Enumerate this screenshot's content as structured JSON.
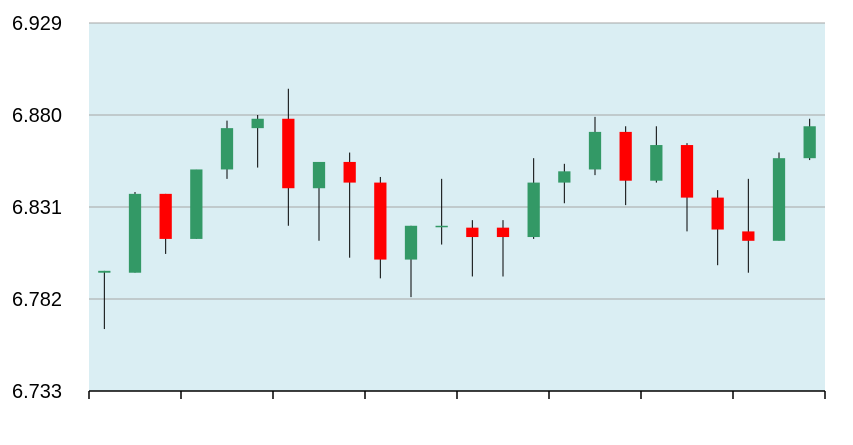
{
  "colors": {
    "plot_background": "#daeef3",
    "gridline": "#a6a6a6",
    "axis": "#000000",
    "up": "#339966",
    "down": "#ff0000",
    "wick": "#000000"
  },
  "chart_data": {
    "type": "candlestick",
    "title": "",
    "xlabel": "",
    "ylabel": "",
    "ylim": [
      6.733,
      6.929
    ],
    "yticks": [
      "6.929",
      "6.880",
      "6.831",
      "6.782",
      "6.733"
    ],
    "grid": true,
    "legend": "none",
    "x_tick_groups": 8,
    "candles": [
      {
        "open": 6.796,
        "close": 6.797,
        "high": 6.797,
        "low": 6.766
      },
      {
        "open": 6.796,
        "close": 6.838,
        "high": 6.839,
        "low": 6.796
      },
      {
        "open": 6.838,
        "close": 6.814,
        "high": 6.838,
        "low": 6.806
      },
      {
        "open": 6.814,
        "close": 6.851,
        "high": 6.851,
        "low": 6.814
      },
      {
        "open": 6.851,
        "close": 6.873,
        "high": 6.877,
        "low": 6.846
      },
      {
        "open": 6.873,
        "close": 6.878,
        "high": 6.88,
        "low": 6.852
      },
      {
        "open": 6.878,
        "close": 6.841,
        "high": 6.894,
        "low": 6.821
      },
      {
        "open": 6.841,
        "close": 6.855,
        "high": 6.855,
        "low": 6.813
      },
      {
        "open": 6.855,
        "close": 6.844,
        "high": 6.86,
        "low": 6.804
      },
      {
        "open": 6.844,
        "close": 6.803,
        "high": 6.847,
        "low": 6.793
      },
      {
        "open": 6.803,
        "close": 6.821,
        "high": 6.821,
        "low": 6.783
      },
      {
        "open": 6.821,
        "close": 6.821,
        "high": 6.846,
        "low": 6.811
      },
      {
        "open": 6.82,
        "close": 6.815,
        "high": 6.824,
        "low": 6.794
      },
      {
        "open": 6.82,
        "close": 6.815,
        "high": 6.824,
        "low": 6.794
      },
      {
        "open": 6.815,
        "close": 6.844,
        "high": 6.857,
        "low": 6.814
      },
      {
        "open": 6.844,
        "close": 6.85,
        "high": 6.854,
        "low": 6.833
      },
      {
        "open": 6.851,
        "close": 6.871,
        "high": 6.879,
        "low": 6.848
      },
      {
        "open": 6.871,
        "close": 6.845,
        "high": 6.874,
        "low": 6.832
      },
      {
        "open": 6.845,
        "close": 6.864,
        "high": 6.874,
        "low": 6.844
      },
      {
        "open": 6.864,
        "close": 6.836,
        "high": 6.865,
        "low": 6.818
      },
      {
        "open": 6.836,
        "close": 6.819,
        "high": 6.84,
        "low": 6.8
      },
      {
        "open": 6.818,
        "close": 6.813,
        "high": 6.846,
        "low": 6.796
      },
      {
        "open": 6.813,
        "close": 6.857,
        "high": 6.86,
        "low": 6.813
      },
      {
        "open": 6.857,
        "close": 6.874,
        "high": 6.878,
        "low": 6.856
      }
    ]
  }
}
